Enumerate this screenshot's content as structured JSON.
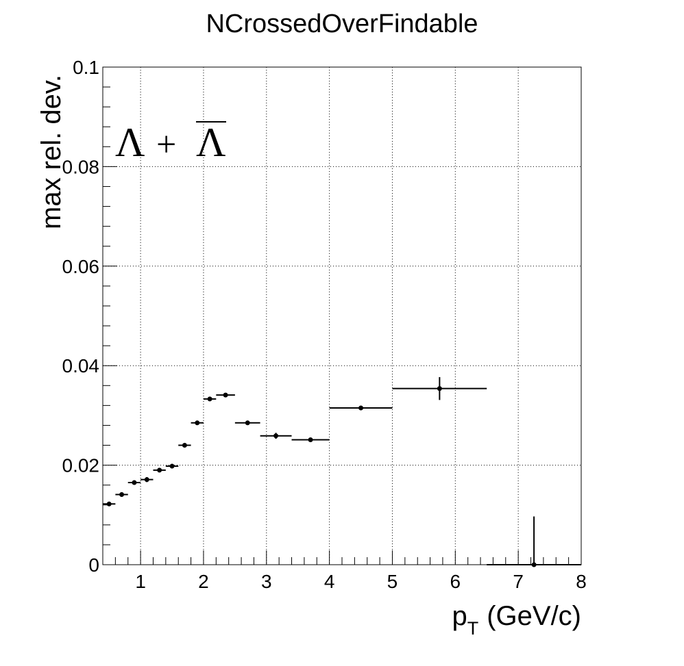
{
  "chart_data": {
    "type": "scatter",
    "title": "NCrossedOverFindable",
    "xlabel_main": "p",
    "xlabel_sub": "T",
    "xlabel_unit": "(GeV/c)",
    "ylabel": "max rel. dev.",
    "annotation": {
      "left": "Λ",
      "plus": "+",
      "right": "Λ"
    },
    "xlim": [
      0.4,
      8.0
    ],
    "ylim": [
      0.0,
      0.1
    ],
    "grid": true,
    "x_ticks": [
      1,
      2,
      3,
      4,
      5,
      6,
      7,
      8
    ],
    "x_tick_labels": [
      "1",
      "2",
      "3",
      "4",
      "5",
      "6",
      "7",
      "8"
    ],
    "y_ticks": [
      0,
      0.02,
      0.04,
      0.06,
      0.08,
      0.1
    ],
    "y_tick_labels": [
      "0",
      "0.02",
      "0.04",
      "0.06",
      "0.08",
      "0.1"
    ],
    "series": [
      {
        "name": "Lambda + AntiLambda",
        "color": "#000000",
        "points": [
          {
            "x": 0.5,
            "xlo": 0.4,
            "xhi": 0.6,
            "y": 0.0122,
            "yerr": 0.0004
          },
          {
            "x": 0.7,
            "xlo": 0.6,
            "xhi": 0.8,
            "y": 0.0141,
            "yerr": 0.0003
          },
          {
            "x": 0.9,
            "xlo": 0.8,
            "xhi": 1.0,
            "y": 0.0165,
            "yerr": 0.0003
          },
          {
            "x": 1.1,
            "xlo": 1.0,
            "xhi": 1.2,
            "y": 0.0171,
            "yerr": 0.0005
          },
          {
            "x": 1.3,
            "xlo": 1.2,
            "xhi": 1.4,
            "y": 0.019,
            "yerr": 0.0004
          },
          {
            "x": 1.5,
            "xlo": 1.4,
            "xhi": 1.6,
            "y": 0.0198,
            "yerr": 0.0004
          },
          {
            "x": 1.7,
            "xlo": 1.6,
            "xhi": 1.8,
            "y": 0.024,
            "yerr": 0.0003
          },
          {
            "x": 1.9,
            "xlo": 1.8,
            "xhi": 2.0,
            "y": 0.0285,
            "yerr": 0.0003
          },
          {
            "x": 2.1,
            "xlo": 2.0,
            "xhi": 2.2,
            "y": 0.0333,
            "yerr": 0.0002
          },
          {
            "x": 2.35,
            "xlo": 2.2,
            "xhi": 2.5,
            "y": 0.0341,
            "yerr": 0.0002
          },
          {
            "x": 2.7,
            "xlo": 2.5,
            "xhi": 2.9,
            "y": 0.0285,
            "yerr": 0.0004
          },
          {
            "x": 3.15,
            "xlo": 2.9,
            "xhi": 3.4,
            "y": 0.0259,
            "yerr": 0.0006
          },
          {
            "x": 3.7,
            "xlo": 3.4,
            "xhi": 4.0,
            "y": 0.0251,
            "yerr": 0.0004
          },
          {
            "x": 4.5,
            "xlo": 4.0,
            "xhi": 5.0,
            "y": 0.0315,
            "yerr": 0.0002
          },
          {
            "x": 5.75,
            "xlo": 5.0,
            "xhi": 6.5,
            "y": 0.0354,
            "yerr": 0.0023
          },
          {
            "x": 7.25,
            "xlo": 6.5,
            "xhi": 8.0,
            "y": 0.0,
            "yerr": 0.0097
          }
        ]
      }
    ]
  }
}
